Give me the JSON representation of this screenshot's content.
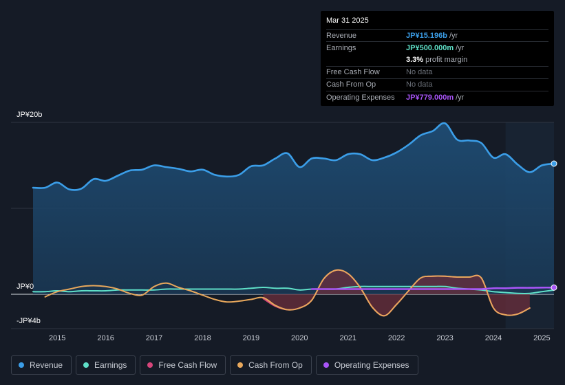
{
  "tooltip": {
    "date": "Mar 31 2025",
    "rows": [
      {
        "label": "Revenue",
        "value": "JP¥15.196b",
        "unit": "/yr",
        "color": "#3b9ee8"
      },
      {
        "label": "Earnings",
        "value": "JP¥500.000m",
        "unit": "/yr",
        "color": "#5fe0c8"
      },
      {
        "label": "",
        "value": "3.3%",
        "unit": "profit margin",
        "color": "#ffffff"
      },
      {
        "label": "Free Cash Flow",
        "value": "No data",
        "unit": "",
        "color": "#6b7079"
      },
      {
        "label": "Cash From Op",
        "value": "No data",
        "unit": "",
        "color": "#6b7079"
      },
      {
        "label": "Operating Expenses",
        "value": "JP¥779.000m",
        "unit": "/yr",
        "color": "#a855f7"
      }
    ]
  },
  "legend": [
    {
      "label": "Revenue",
      "color": "#3b9ee8"
    },
    {
      "label": "Earnings",
      "color": "#5fe0c8"
    },
    {
      "label": "Free Cash Flow",
      "color": "#d6457a"
    },
    {
      "label": "Cash From Op",
      "color": "#e8a85c"
    },
    {
      "label": "Operating Expenses",
      "color": "#a855f7"
    }
  ],
  "chart_data": {
    "type": "line",
    "title": "",
    "xlabel": "",
    "ylabel": "",
    "ylim": [
      -4,
      20
    ],
    "x_range": [
      2014.5,
      2025.25
    ],
    "y_tick_labels": [
      {
        "value": 20,
        "label": "JP¥20b"
      },
      {
        "value": 0,
        "label": "JP¥0"
      },
      {
        "value": -4,
        "label": "-JP¥4b"
      }
    ],
    "x_tick_labels": [
      "2015",
      "2016",
      "2017",
      "2018",
      "2019",
      "2020",
      "2021",
      "2022",
      "2023",
      "2024",
      "2025"
    ],
    "x_tick_values": [
      2015,
      2016,
      2017,
      2018,
      2019,
      2020,
      2021,
      2022,
      2023,
      2024,
      2025
    ],
    "highlight_from": 2024.25,
    "series": [
      {
        "name": "Revenue",
        "color": "#3b9ee8",
        "fill": true,
        "x": [
          2014.5,
          2014.75,
          2015.0,
          2015.25,
          2015.5,
          2015.75,
          2016.0,
          2016.25,
          2016.5,
          2016.75,
          2017.0,
          2017.25,
          2017.5,
          2017.75,
          2018.0,
          2018.25,
          2018.5,
          2018.75,
          2019.0,
          2019.25,
          2019.5,
          2019.75,
          2020.0,
          2020.25,
          2020.5,
          2020.75,
          2021.0,
          2021.25,
          2021.5,
          2021.75,
          2022.0,
          2022.25,
          2022.5,
          2022.75,
          2023.0,
          2023.25,
          2023.5,
          2023.75,
          2024.0,
          2024.25,
          2024.5,
          2024.75,
          2025.0,
          2025.25
        ],
        "values": [
          12.4,
          12.4,
          13.0,
          12.2,
          12.3,
          13.4,
          13.2,
          13.8,
          14.4,
          14.5,
          15.0,
          14.8,
          14.6,
          14.3,
          14.5,
          13.9,
          13.7,
          13.9,
          14.9,
          15.0,
          15.8,
          16.4,
          14.8,
          15.8,
          15.8,
          15.6,
          16.3,
          16.3,
          15.6,
          15.9,
          16.5,
          17.4,
          18.5,
          19.0,
          19.9,
          18.0,
          17.9,
          17.6,
          15.9,
          16.3,
          15.1,
          14.2,
          15.0,
          15.2
        ]
      },
      {
        "name": "Earnings",
        "color": "#5fe0c8",
        "fill": false,
        "x": [
          2014.5,
          2014.75,
          2015.0,
          2015.25,
          2015.5,
          2015.75,
          2016.0,
          2016.25,
          2016.5,
          2016.75,
          2017.0,
          2017.25,
          2017.5,
          2017.75,
          2018.0,
          2018.25,
          2018.5,
          2018.75,
          2019.0,
          2019.25,
          2019.5,
          2019.75,
          2020.0,
          2020.25,
          2020.5,
          2020.75,
          2021.0,
          2021.25,
          2021.5,
          2021.75,
          2022.0,
          2022.25,
          2022.5,
          2022.75,
          2023.0,
          2023.25,
          2023.5,
          2023.75,
          2024.0,
          2024.25,
          2024.5,
          2024.75,
          2025.0,
          2025.25
        ],
        "values": [
          0.3,
          0.3,
          0.4,
          0.3,
          0.4,
          0.4,
          0.4,
          0.5,
          0.5,
          0.5,
          0.5,
          0.6,
          0.6,
          0.6,
          0.6,
          0.6,
          0.6,
          0.6,
          0.7,
          0.8,
          0.7,
          0.7,
          0.5,
          0.6,
          0.6,
          0.6,
          0.8,
          0.9,
          0.9,
          0.9,
          0.9,
          0.9,
          0.9,
          0.9,
          0.9,
          0.7,
          0.6,
          0.5,
          0.3,
          0.2,
          0.1,
          0.1,
          0.3,
          0.5
        ]
      },
      {
        "name": "Free Cash Flow",
        "color": "#d6457a",
        "fill": true,
        "x": [
          2019.25,
          2019.5,
          2019.75,
          2020.0,
          2020.25,
          2020.5,
          2020.75,
          2021.0,
          2021.25,
          2021.5,
          2021.75,
          2022.0,
          2022.25,
          2022.5,
          2022.75,
          2023.0,
          2023.25,
          2023.5,
          2023.75,
          2024.0,
          2024.25,
          2024.5,
          2024.75
        ],
        "values": [
          -0.5,
          -1.4,
          -1.8,
          -1.6,
          -0.7,
          1.8,
          2.8,
          2.4,
          0.8,
          -1.5,
          -2.5,
          -1.2,
          0.4,
          1.9,
          2.1,
          2.1,
          2.0,
          2.0,
          1.9,
          -1.6,
          -2.4,
          -2.3,
          -1.6
        ]
      },
      {
        "name": "Cash From Op",
        "color": "#e8a85c",
        "fill": false,
        "x": [
          2014.75,
          2015.0,
          2015.25,
          2015.5,
          2015.75,
          2016.0,
          2016.25,
          2016.5,
          2016.75,
          2017.0,
          2017.25,
          2017.5,
          2017.75,
          2018.0,
          2018.25,
          2018.5,
          2018.75,
          2019.0,
          2019.25,
          2019.5,
          2019.75,
          2020.0,
          2020.25,
          2020.5,
          2020.75,
          2021.0,
          2021.25,
          2021.5,
          2021.75,
          2022.0,
          2022.25,
          2022.5,
          2022.75,
          2023.0,
          2023.25,
          2023.5,
          2023.75,
          2024.0,
          2024.25,
          2024.5,
          2024.75
        ],
        "values": [
          -0.3,
          0.3,
          0.6,
          0.9,
          1.0,
          0.9,
          0.6,
          0.1,
          -0.1,
          0.9,
          1.3,
          0.8,
          0.4,
          -0.1,
          -0.6,
          -0.9,
          -0.8,
          -0.6,
          -0.4,
          -1.3,
          -1.8,
          -1.6,
          -0.7,
          1.8,
          2.8,
          2.4,
          0.8,
          -1.5,
          -2.5,
          -1.2,
          0.4,
          1.9,
          2.1,
          2.1,
          2.0,
          2.0,
          1.9,
          -1.6,
          -2.4,
          -2.3,
          -1.6
        ]
      },
      {
        "name": "Operating Expenses",
        "color": "#a855f7",
        "fill": false,
        "x": [
          2020.25,
          2020.5,
          2020.75,
          2021.0,
          2021.25,
          2021.5,
          2021.75,
          2022.0,
          2022.25,
          2022.5,
          2022.75,
          2023.0,
          2023.25,
          2023.5,
          2023.75,
          2024.0,
          2024.25,
          2024.5,
          2024.75,
          2025.0,
          2025.25
        ],
        "values": [
          0.6,
          0.6,
          0.6,
          0.6,
          0.6,
          0.6,
          0.6,
          0.6,
          0.6,
          0.6,
          0.6,
          0.6,
          0.6,
          0.6,
          0.6,
          0.7,
          0.7,
          0.75,
          0.75,
          0.78,
          0.78
        ]
      }
    ]
  }
}
